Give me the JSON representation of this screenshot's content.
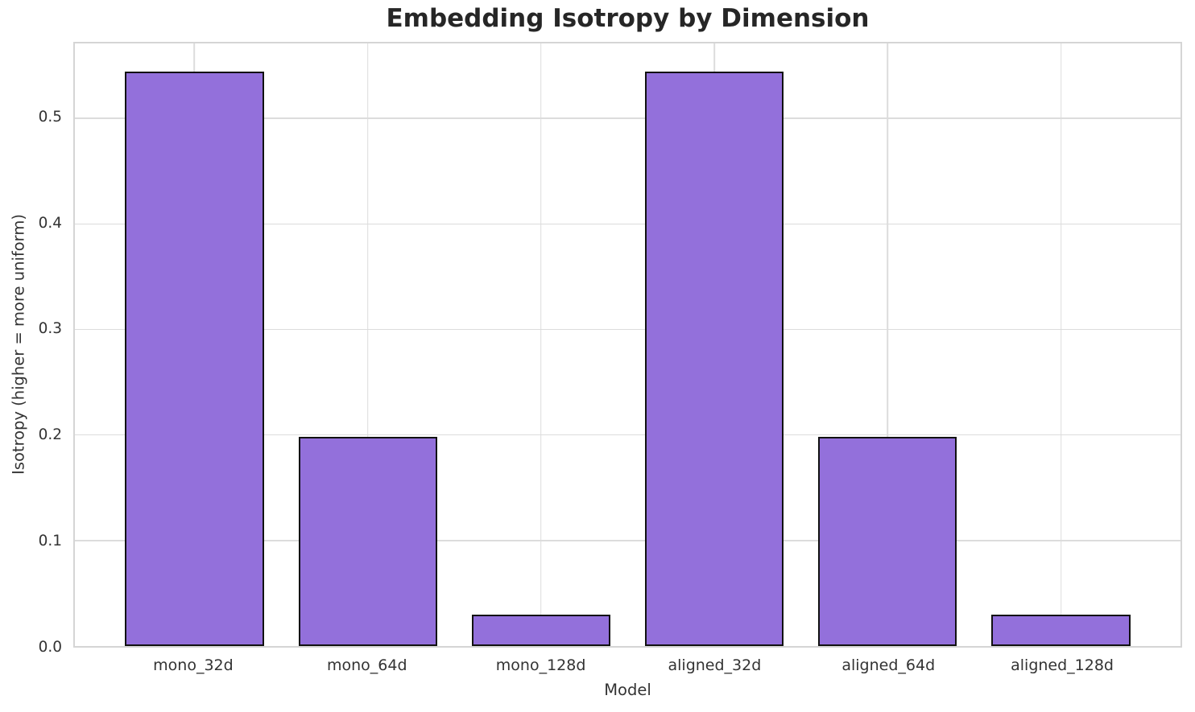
{
  "chart_data": {
    "type": "bar",
    "title": "Embedding Isotropy by Dimension",
    "xlabel": "Model",
    "ylabel": "Isotropy (higher = more uniform)",
    "categories": [
      "mono_32d",
      "mono_64d",
      "mono_128d",
      "aligned_32d",
      "aligned_64d",
      "aligned_128d"
    ],
    "values": [
      0.544,
      0.198,
      0.03,
      0.544,
      0.198,
      0.03
    ],
    "ylim": [
      0,
      0.571
    ],
    "ytick_values": [
      0,
      0.1,
      0.2,
      0.3,
      0.4,
      0.5
    ],
    "ytick_labels": [
      "0.0",
      "0.1",
      "0.2",
      "0.3",
      "0.4",
      "0.5"
    ],
    "x_range": [
      -0.69,
      5.69
    ],
    "bar_width_units": 0.8,
    "grid": true,
    "legend": false,
    "colors": {
      "bar_fill": "#9370db",
      "bar_edge": "#111111",
      "grid": "#dcdcdc",
      "spine": "#d5d5d5",
      "tick_text": "#333333",
      "title_text": "#262626",
      "background": "#ffffff"
    }
  }
}
